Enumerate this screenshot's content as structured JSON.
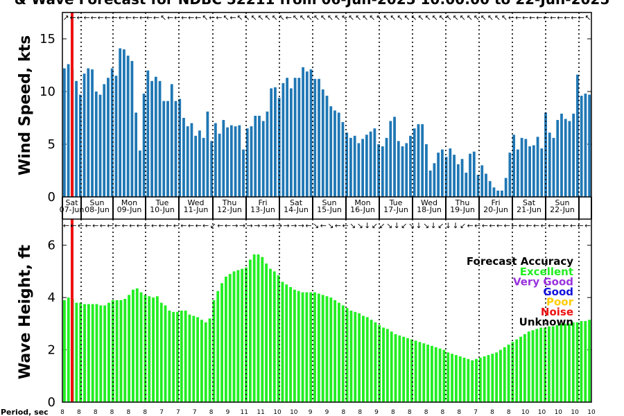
{
  "title": "& Wave Forecast for NDBC 52211 from 06-Jun-2025 10:00:00 to 22-Jun-2025",
  "top_ylabel": "Wind Speed, kts",
  "bottom_ylabel": "Wave Height, ft",
  "period_label": "Period, sec",
  "day_labels": [
    {
      "dow": "Sat",
      "date": "07-Jun"
    },
    {
      "dow": "Sun",
      "date": "08-Jun"
    },
    {
      "dow": "Mon",
      "date": "09-Jun"
    },
    {
      "dow": "Tue",
      "date": "10-Jun"
    },
    {
      "dow": "Wed",
      "date": "11-Jun"
    },
    {
      "dow": "Thu",
      "date": "12-Jun"
    },
    {
      "dow": "Fri",
      "date": "13-Jun"
    },
    {
      "dow": "Sat",
      "date": "14-Jun"
    },
    {
      "dow": "Sun",
      "date": "15-Jun"
    },
    {
      "dow": "Mon",
      "date": "16-Jun"
    },
    {
      "dow": "Tue",
      "date": "17-Jun"
    },
    {
      "dow": "Wed",
      "date": "18-Jun"
    },
    {
      "dow": "Thu",
      "date": "19-Jun"
    },
    {
      "dow": "Fri",
      "date": "20-Jun"
    },
    {
      "dow": "Sat",
      "date": "21-Jun"
    },
    {
      "dow": "Sun",
      "date": "22-Jun"
    }
  ],
  "legend": {
    "title": "Forecast Accuracy",
    "items": [
      {
        "label": "Excellent",
        "color": "#22ee22"
      },
      {
        "label": "Very Good",
        "color": "#9933dd"
      },
      {
        "label": "Good",
        "color": "#1111dd"
      },
      {
        "label": "Poor",
        "color": "#ffcc00"
      },
      {
        "label": "Noise",
        "color": "#ee1111"
      },
      {
        "label": "Unknown",
        "color": "#000000"
      }
    ]
  },
  "colors": {
    "wind_bar": "#1f77b4",
    "wave_bar": "#22ee22",
    "now_line": "#ee1111"
  },
  "chart_data": [
    {
      "type": "bar",
      "ylabel": "Wind Speed, kts",
      "ylim": [
        0,
        17.5
      ],
      "yticks": [
        0,
        5,
        10,
        15
      ],
      "values": [
        12.2,
        12.6,
        12.1,
        11.0,
        9.7,
        11.7,
        12.2,
        12.1,
        10.0,
        9.7,
        10.7,
        11.3,
        12.2,
        11.5,
        14.1,
        14.0,
        13.4,
        12.9,
        8.0,
        4.4,
        9.8,
        12.0,
        11.0,
        11.4,
        11.0,
        9.1,
        9.1,
        10.7,
        9.1,
        9.3,
        7.5,
        6.7,
        7.0,
        5.8,
        6.3,
        5.6,
        8.1,
        5.3,
        7.0,
        6.0,
        7.3,
        6.6,
        6.8,
        6.7,
        6.8,
        4.5,
        6.5,
        6.7,
        7.7,
        7.7,
        7.2,
        8.1,
        10.3,
        10.4,
        9.4,
        10.8,
        11.3,
        10.3,
        11.3,
        11.3,
        12.3,
        11.9,
        12.1,
        11.2,
        11.2,
        10.2,
        9.6,
        8.6,
        8.2,
        8.0,
        7.1,
        6.1,
        5.6,
        5.8,
        5.1,
        5.5,
        5.9,
        6.2,
        6.5,
        5.0,
        4.8,
        5.6,
        7.2,
        7.6,
        5.3,
        4.8,
        5.1,
        5.8,
        6.5,
        6.9,
        6.9,
        5.0,
        2.5,
        3.2,
        4.2,
        4.5,
        3.8,
        4.6,
        4.0,
        3.1,
        3.6,
        2.3,
        4.1,
        4.3,
        2.1,
        3.0,
        2.2,
        1.5,
        0.9,
        0.6,
        0.6,
        1.8,
        4.2,
        5.9,
        4.5,
        5.6,
        5.5,
        4.8,
        4.9,
        5.7,
        4.6,
        8.0,
        6.1,
        5.6,
        7.3,
        7.9,
        7.4,
        7.2,
        7.9,
        11.6,
        9.6,
        9.8,
        9.7
      ]
    },
    {
      "type": "bar",
      "ylabel": "Wave Height, ft",
      "ylim": [
        0,
        7
      ],
      "yticks": [
        0,
        2,
        4,
        6
      ],
      "values": [
        3.9,
        4.0,
        3.95,
        3.8,
        3.8,
        3.75,
        3.75,
        3.75,
        3.75,
        3.7,
        3.7,
        3.8,
        3.9,
        3.9,
        3.9,
        3.95,
        4.1,
        4.3,
        4.35,
        4.2,
        4.1,
        4.05,
        4.0,
        4.05,
        3.8,
        3.7,
        3.5,
        3.45,
        3.45,
        3.5,
        3.5,
        3.35,
        3.3,
        3.25,
        3.15,
        3.05,
        3.2,
        3.9,
        4.25,
        4.55,
        4.8,
        4.9,
        5.0,
        5.05,
        5.1,
        5.15,
        5.45,
        5.65,
        5.65,
        5.55,
        5.3,
        5.1,
        5.0,
        4.85,
        4.6,
        4.5,
        4.4,
        4.3,
        4.25,
        4.2,
        4.2,
        4.2,
        4.2,
        4.15,
        4.1,
        4.05,
        4.0,
        3.9,
        3.8,
        3.7,
        3.6,
        3.5,
        3.45,
        3.4,
        3.3,
        3.25,
        3.15,
        3.05,
        2.95,
        2.85,
        2.8,
        2.7,
        2.6,
        2.55,
        2.5,
        2.45,
        2.4,
        2.35,
        2.3,
        2.25,
        2.2,
        2.15,
        2.1,
        2.05,
        2.0,
        1.9,
        1.85,
        1.8,
        1.75,
        1.7,
        1.65,
        1.6,
        1.65,
        1.7,
        1.75,
        1.8,
        1.85,
        1.9,
        2.0,
        2.1,
        2.2,
        2.3,
        2.4,
        2.5,
        2.6,
        2.7,
        2.75,
        2.8,
        2.85,
        2.85,
        2.9,
        2.9,
        2.95,
        3.0,
        3.0,
        3.0,
        3.05,
        3.05,
        3.1,
        3.1,
        3.15
      ]
    }
  ],
  "period_values": [
    8,
    8,
    8,
    8,
    8,
    8,
    7,
    7,
    7,
    8,
    9,
    11,
    11,
    10,
    10,
    9,
    9,
    8,
    8,
    9,
    8,
    8,
    8,
    8,
    8,
    7,
    8,
    8,
    10,
    10,
    10,
    10,
    10
  ],
  "wind_arrows": [
    "↗",
    "←",
    "←",
    "←",
    "←",
    "←",
    "←",
    "←",
    "←",
    "←",
    "←",
    "←",
    "←",
    "←",
    "↖",
    "←",
    "←",
    "←",
    "←",
    "←",
    "↖",
    "←",
    "←",
    "↖",
    "←",
    "↖",
    "↖",
    "↖",
    "↖",
    "↖",
    "↖",
    "↖",
    "←",
    "↖",
    "↖",
    "↖",
    "↖",
    "↖",
    "↖",
    "↖",
    "↖",
    "↖",
    "↖",
    "↖",
    "↖",
    "↖",
    "↖",
    "↖",
    "↖",
    "↖",
    "↖",
    "↖",
    "↖",
    "↖",
    "↖",
    "↖",
    "↖",
    "↖",
    "↖",
    "↖",
    "↖",
    "↖",
    "↖",
    "↖",
    "←",
    "←",
    "←",
    "←",
    "←",
    "←",
    "←",
    "←",
    "←",
    "←",
    "←",
    "↖"
  ],
  "wave_arrows": [
    "←",
    "←",
    "←",
    "←",
    "←",
    "←",
    "←",
    "←",
    "←",
    "←",
    "←",
    "←",
    "←",
    "←",
    "←",
    "←",
    "←",
    "←",
    "←",
    "←",
    "↙",
    "←",
    "←",
    "→",
    "→",
    "→",
    "→",
    "→",
    "→",
    "→",
    "→",
    "→",
    "→",
    "←",
    "↘",
    "←",
    "↘",
    "←",
    "←",
    "↘",
    "↘",
    "↓",
    "↙",
    "↙",
    "↘",
    "↓",
    "↙",
    "↘",
    "↓",
    "↘",
    "↓",
    "↙",
    "↓",
    "↓",
    "↙",
    "←",
    "←",
    "←",
    "←",
    "←",
    "←",
    "←",
    "←",
    "←",
    "←",
    "←",
    "←",
    "←",
    "←",
    "←",
    "←",
    "←"
  ]
}
